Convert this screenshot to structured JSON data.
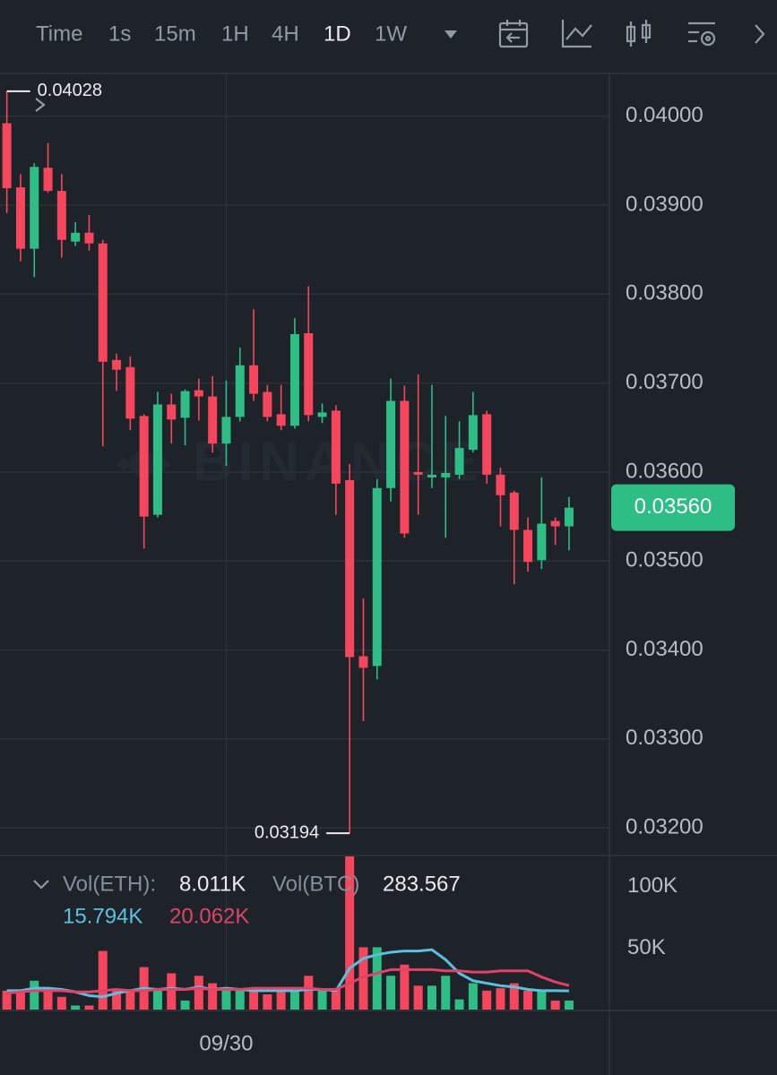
{
  "toolbar": {
    "tabs": [
      "Time",
      "1s",
      "15m",
      "1H",
      "4H",
      "1D",
      "1W"
    ],
    "active_index": 5
  },
  "watermark": "BINANCE",
  "chart_data": [
    {
      "type": "candlestick",
      "categories": [
        null,
        null,
        null,
        null,
        null,
        null,
        null,
        null,
        null,
        null,
        null,
        null,
        null,
        null,
        null,
        null,
        "09/30",
        null,
        null,
        null,
        null,
        null,
        null,
        null,
        null,
        null,
        null,
        null,
        null,
        null,
        null,
        null,
        null,
        null,
        null,
        null,
        null,
        null,
        null,
        null,
        null,
        null
      ],
      "open": [
        0.03992,
        0.0392,
        0.03851,
        0.03942,
        0.03916,
        0.03859,
        0.03869,
        0.03857,
        0.03726,
        0.03718,
        0.03663,
        0.03552,
        0.03676,
        0.03661,
        0.03692,
        0.03685,
        0.03632,
        0.03662,
        0.0372,
        0.0369,
        0.03665,
        0.03652,
        0.03756,
        0.03662,
        0.03669,
        0.03591,
        0.03393,
        0.03382,
        0.03582,
        0.0368,
        0.036,
        0.03594,
        0.03594,
        0.03597,
        0.03625,
        0.03665,
        0.03597,
        0.03577,
        0.03535,
        0.03501,
        0.03545,
        0.03539
      ],
      "high": [
        0.04028,
        0.03935,
        0.03947,
        0.0397,
        0.03935,
        0.03881,
        0.03889,
        0.03861,
        0.03733,
        0.0373,
        0.03665,
        0.0369,
        0.03688,
        0.03693,
        0.03705,
        0.03708,
        0.03703,
        0.0374,
        0.03783,
        0.03698,
        0.03698,
        0.03773,
        0.03809,
        0.03677,
        0.03675,
        0.03609,
        0.03458,
        0.03592,
        0.03705,
        0.03697,
        0.0371,
        0.03698,
        0.03663,
        0.03657,
        0.0369,
        0.03669,
        0.03605,
        0.03579,
        0.03549,
        0.03594,
        0.03549,
        0.03572
      ],
      "low": [
        0.03891,
        0.03837,
        0.03819,
        0.03914,
        0.03841,
        0.03854,
        0.03849,
        0.03629,
        0.03691,
        0.03647,
        0.03514,
        0.03549,
        0.03632,
        0.0363,
        0.03658,
        0.03622,
        0.03607,
        0.03657,
        0.0368,
        0.03657,
        0.03647,
        0.03649,
        0.03657,
        0.03655,
        0.03552,
        0.03194,
        0.0332,
        0.03367,
        0.03567,
        0.03526,
        0.03552,
        0.03582,
        0.03526,
        0.03592,
        0.03622,
        0.03587,
        0.03539,
        0.03474,
        0.03488,
        0.03491,
        0.03518,
        0.03512
      ],
      "close": [
        0.03919,
        0.03851,
        0.03943,
        0.03916,
        0.03861,
        0.03869,
        0.03857,
        0.03724,
        0.03715,
        0.0366,
        0.0355,
        0.03676,
        0.03659,
        0.03691,
        0.03685,
        0.03632,
        0.03662,
        0.0372,
        0.03688,
        0.03662,
        0.03652,
        0.03755,
        0.03664,
        0.03667,
        0.03587,
        0.03392,
        0.0338,
        0.03582,
        0.0368,
        0.03531,
        0.03597,
        0.03597,
        0.03599,
        0.03627,
        0.03664,
        0.03597,
        0.03574,
        0.03535,
        0.03499,
        0.03542,
        0.03539,
        0.0356
      ],
      "up_color": "#2ebd85",
      "down_color": "#f6465d",
      "ylim": [
        0.03169,
        0.04048
      ],
      "yticks": [
        {
          "value": 0.032,
          "label": "0.03200"
        },
        {
          "value": 0.033,
          "label": "0.03300"
        },
        {
          "value": 0.034,
          "label": "0.03400"
        },
        {
          "value": 0.035,
          "label": "0.03500"
        },
        {
          "value": 0.036,
          "label": "0.03600"
        },
        {
          "value": 0.037,
          "label": "0.03700"
        },
        {
          "value": 0.038,
          "label": "0.03800"
        },
        {
          "value": 0.039,
          "label": "0.03900"
        },
        {
          "value": 0.04,
          "label": "0.04000"
        }
      ],
      "grid": true,
      "high_label": 0.04028,
      "low_label": 0.03194,
      "last_price": {
        "value": 0.0356,
        "label": "0.03560"
      }
    },
    {
      "type": "bar",
      "legend": {
        "vol_eth_label": "Vol(ETH):",
        "vol_eth": "8.011K",
        "vol_btc_label": "Vol(BTC)",
        "vol_btc": "283.567"
      },
      "series": [
        {
          "name": "Vol(ETH)",
          "values": [
            16000,
            16000,
            24000,
            16000,
            11000,
            4000,
            4000,
            48000,
            16000,
            16000,
            35000,
            16000,
            30000,
            8000,
            28000,
            22000,
            16000,
            16000,
            16000,
            13000,
            16000,
            16000,
            28000,
            16000,
            18000,
            125000,
            51000,
            51000,
            28000,
            37000,
            20000,
            20000,
            28000,
            9000,
            22000,
            16000,
            18000,
            22000,
            16000,
            16000,
            8000,
            8011
          ]
        },
        {
          "name": "15.794K",
          "color": "#5bc0de",
          "values": [
            16000,
            16000,
            18000,
            18000,
            17000,
            15000,
            12000,
            11000,
            14000,
            16000,
            18000,
            17000,
            18000,
            17000,
            19000,
            17000,
            18000,
            17000,
            16000,
            16000,
            16000,
            16000,
            17000,
            17000,
            16000,
            34000,
            42000,
            45000,
            47000,
            48000,
            48000,
            49000,
            41000,
            30000,
            24000,
            22000,
            20000,
            19000,
            17000,
            16000,
            16000,
            15794
          ]
        },
        {
          "name": "20.062K",
          "color": "#e0436a",
          "values": [
            14000,
            15000,
            16000,
            16000,
            16000,
            15000,
            15000,
            16000,
            17000,
            16000,
            16000,
            17000,
            17000,
            17000,
            18000,
            17000,
            17000,
            17000,
            18000,
            18000,
            18000,
            18000,
            18000,
            17000,
            17000,
            22000,
            27000,
            30000,
            33000,
            33000,
            33000,
            33000,
            32000,
            32000,
            31000,
            31000,
            32000,
            32000,
            32000,
            27000,
            23000,
            20062
          ]
        }
      ],
      "ylim": [
        0,
        125000
      ],
      "yticks": [
        {
          "value": 50000,
          "label": "50K"
        },
        {
          "value": 100000,
          "label": "100K"
        }
      ]
    }
  ]
}
